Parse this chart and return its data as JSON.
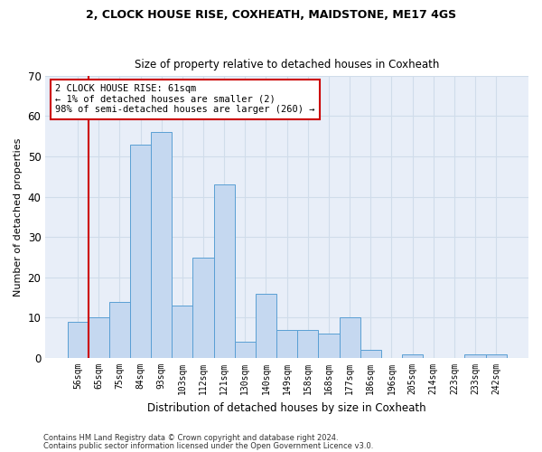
{
  "title1": "2, CLOCK HOUSE RISE, COXHEATH, MAIDSTONE, ME17 4GS",
  "title2": "Size of property relative to detached houses in Coxheath",
  "xlabel": "Distribution of detached houses by size in Coxheath",
  "ylabel": "Number of detached properties",
  "bar_labels": [
    "56sqm",
    "65sqm",
    "75sqm",
    "84sqm",
    "93sqm",
    "103sqm",
    "112sqm",
    "121sqm",
    "130sqm",
    "140sqm",
    "149sqm",
    "158sqm",
    "168sqm",
    "177sqm",
    "186sqm",
    "196sqm",
    "205sqm",
    "214sqm",
    "223sqm",
    "233sqm",
    "242sqm"
  ],
  "bar_values": [
    9,
    10,
    14,
    53,
    56,
    13,
    25,
    43,
    4,
    16,
    7,
    7,
    6,
    10,
    2,
    0,
    1,
    0,
    0,
    1,
    1
  ],
  "bar_color": "#c5d8f0",
  "bar_edge_color": "#5a9fd4",
  "annotation_text": "2 CLOCK HOUSE RISE: 61sqm\n← 1% of detached houses are smaller (2)\n98% of semi-detached houses are larger (260) →",
  "annotation_box_color": "#ffffff",
  "annotation_box_edge": "#cc0000",
  "red_line_x": 0.5,
  "ylim": [
    0,
    70
  ],
  "yticks": [
    0,
    10,
    20,
    30,
    40,
    50,
    60,
    70
  ],
  "grid_color": "#d0dcea",
  "background_color": "#e8eef8",
  "footer1": "Contains HM Land Registry data © Crown copyright and database right 2024.",
  "footer2": "Contains public sector information licensed under the Open Government Licence v3.0."
}
